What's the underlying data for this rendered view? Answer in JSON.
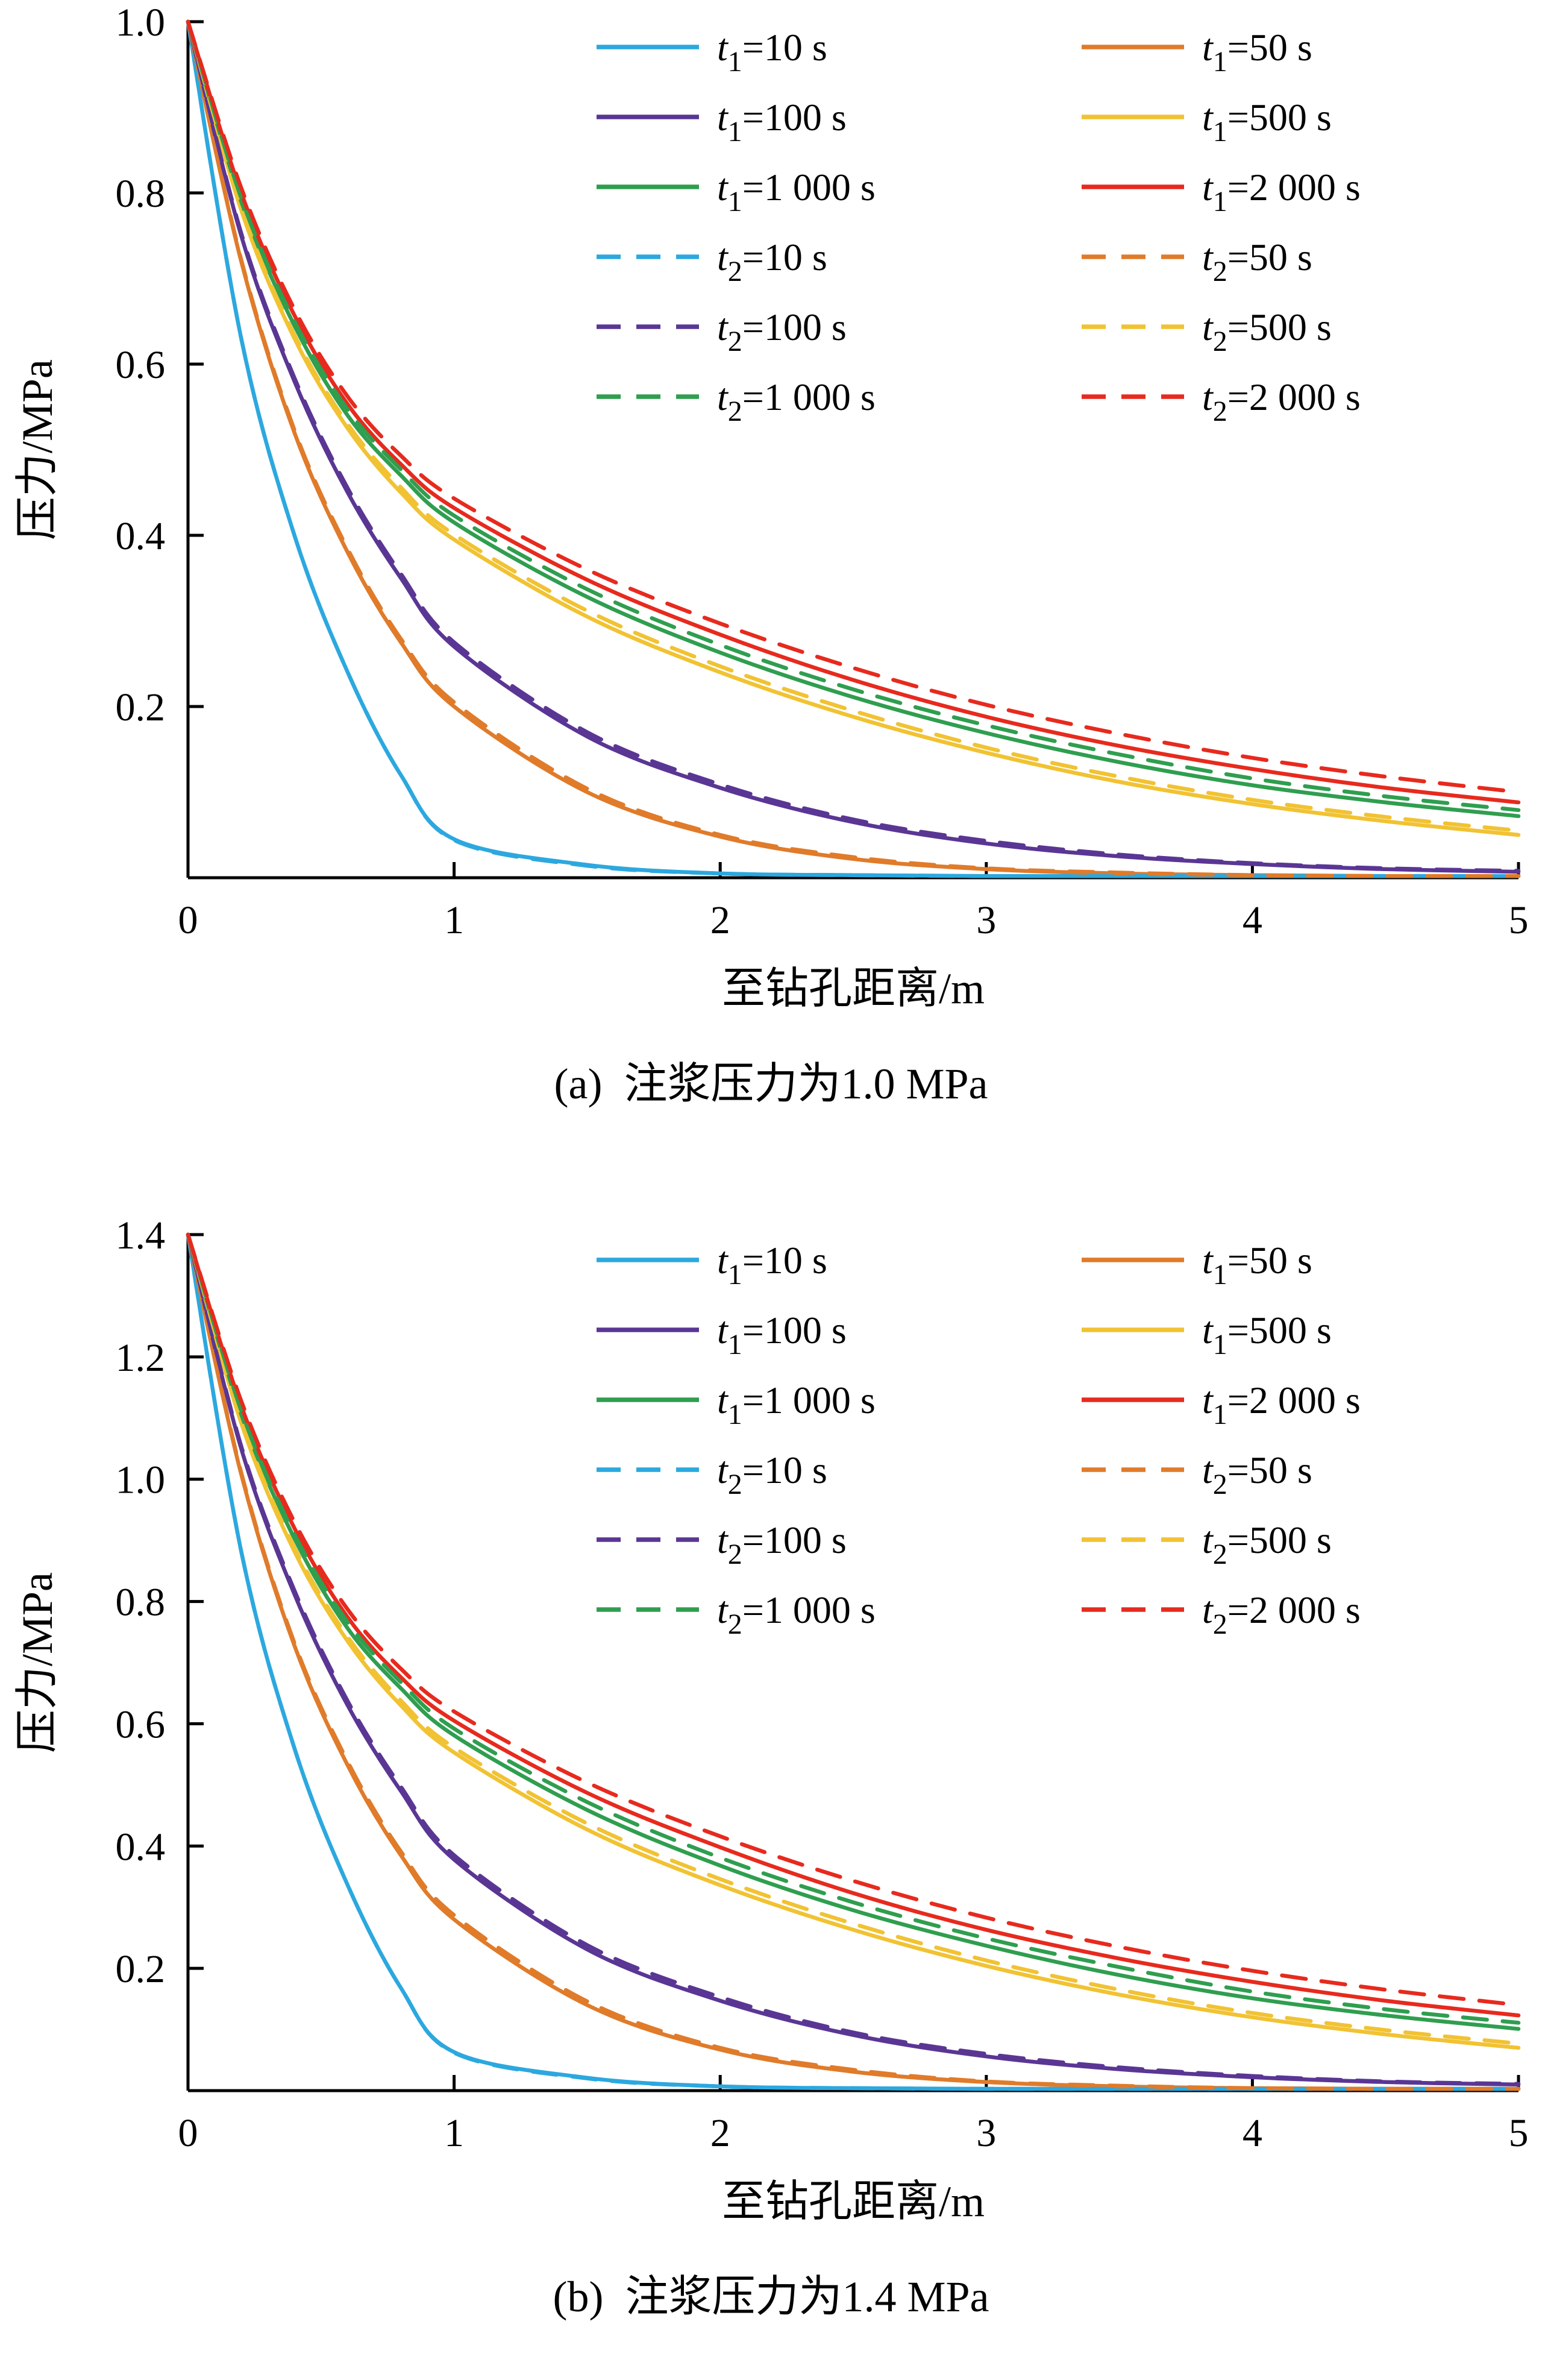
{
  "chart_data": [
    {
      "type": "line",
      "caption": "(a)  注浆压力为1.0 MPa",
      "xlabel": "至钻孔距离/m",
      "ylabel": "压力/MPa",
      "xlim": [
        0,
        5
      ],
      "ylim": [
        0,
        1.0
      ],
      "xticks": [
        0,
        1,
        2,
        3,
        4,
        5
      ],
      "xtick_labels": [
        "0",
        "1",
        "2",
        "3",
        "4",
        "5"
      ],
      "yticks": [
        0.2,
        0.4,
        0.6,
        0.8,
        1.0
      ],
      "ytick_labels": [
        "0.2",
        "0.4",
        "0.6",
        "0.8",
        "1.0"
      ],
      "grid": false,
      "legend_position": "top-center-two-columns",
      "x": [
        0,
        0.2,
        0.4,
        0.6,
        0.8,
        1.0,
        1.5,
        2.0,
        2.5,
        3.0,
        3.5,
        4.0,
        4.5,
        5.0
      ],
      "series": [
        {
          "name": "t1-10s",
          "color": "#2CA8DF",
          "dashed": false,
          "legend": {
            "var": "t",
            "sub": "1",
            "rest": "=10 s"
          },
          "y": [
            1.0,
            0.63,
            0.4,
            0.24,
            0.12,
            0.045,
            0.015,
            0.005,
            0.003,
            0.002,
            0.002,
            0.002,
            0.002,
            0.002
          ]
        },
        {
          "name": "t1-50s",
          "color": "#E07B2A",
          "dashed": false,
          "legend": {
            "var": "t",
            "sub": "1",
            "rest": "=50 s"
          },
          "y": [
            1.0,
            0.72,
            0.52,
            0.38,
            0.275,
            0.2,
            0.1,
            0.048,
            0.022,
            0.01,
            0.005,
            0.003,
            0.002,
            0.002
          ]
        },
        {
          "name": "t1-100s",
          "color": "#5A3694",
          "dashed": false,
          "legend": {
            "var": "t",
            "sub": "1",
            "rest": "=100 s"
          },
          "y": [
            1.0,
            0.75,
            0.58,
            0.45,
            0.35,
            0.27,
            0.165,
            0.105,
            0.065,
            0.04,
            0.025,
            0.016,
            0.01,
            0.007
          ]
        },
        {
          "name": "t1-500s",
          "color": "#F1C232",
          "dashed": false,
          "legend": {
            "var": "t",
            "sub": "1",
            "rest": "=500 s"
          },
          "y": [
            1.0,
            0.78,
            0.63,
            0.525,
            0.45,
            0.395,
            0.305,
            0.24,
            0.188,
            0.146,
            0.112,
            0.086,
            0.066,
            0.05
          ]
        },
        {
          "name": "t1-1000s",
          "color": "#2F9E4F",
          "dashed": false,
          "legend": {
            "var": "t",
            "sub": "1",
            "rest": "=1 000 s"
          },
          "y": [
            1.0,
            0.79,
            0.645,
            0.54,
            0.47,
            0.415,
            0.328,
            0.263,
            0.211,
            0.169,
            0.135,
            0.108,
            0.088,
            0.072
          ]
        },
        {
          "name": "t1-2000s",
          "color": "#E72A1E",
          "dashed": false,
          "legend": {
            "var": "t",
            "sub": "1",
            "rest": "=2 000 s"
          },
          "y": [
            1.0,
            0.8,
            0.657,
            0.553,
            0.483,
            0.432,
            0.348,
            0.284,
            0.231,
            0.188,
            0.154,
            0.127,
            0.105,
            0.088
          ]
        },
        {
          "name": "t2-10s",
          "color": "#2CA8DF",
          "dashed": true,
          "legend": {
            "var": "t",
            "sub": "2",
            "rest": "=10 s"
          },
          "y": [
            1.0,
            0.63,
            0.4,
            0.24,
            0.12,
            0.044,
            0.014,
            0.005,
            0.003,
            0.002,
            0.002,
            0.002,
            0.002,
            0.002
          ]
        },
        {
          "name": "t2-50s",
          "color": "#E07B2A",
          "dashed": true,
          "legend": {
            "var": "t",
            "sub": "2",
            "rest": "=50 s"
          },
          "y": [
            1.0,
            0.722,
            0.523,
            0.384,
            0.279,
            0.205,
            0.104,
            0.05,
            0.024,
            0.011,
            0.006,
            0.003,
            0.002,
            0.002
          ]
        },
        {
          "name": "t2-100s",
          "color": "#5A3694",
          "dashed": true,
          "legend": {
            "var": "t",
            "sub": "2",
            "rest": "=100 s"
          },
          "y": [
            1.0,
            0.753,
            0.584,
            0.455,
            0.355,
            0.275,
            0.17,
            0.109,
            0.068,
            0.043,
            0.027,
            0.017,
            0.011,
            0.008
          ]
        },
        {
          "name": "t2-500s",
          "color": "#F1C232",
          "dashed": true,
          "legend": {
            "var": "t",
            "sub": "2",
            "rest": "=500 s"
          },
          "y": [
            1.0,
            0.783,
            0.634,
            0.53,
            0.456,
            0.401,
            0.312,
            0.247,
            0.195,
            0.152,
            0.118,
            0.091,
            0.071,
            0.055
          ]
        },
        {
          "name": "t2-1000s",
          "color": "#2F9E4F",
          "dashed": true,
          "legend": {
            "var": "t",
            "sub": "2",
            "rest": "=1 000 s"
          },
          "y": [
            1.0,
            0.794,
            0.65,
            0.547,
            0.477,
            0.423,
            0.337,
            0.272,
            0.22,
            0.178,
            0.144,
            0.116,
            0.095,
            0.079
          ]
        },
        {
          "name": "t2-2000s",
          "color": "#E72A1E",
          "dashed": true,
          "legend": {
            "var": "t",
            "sub": "2",
            "rest": "=2 000 s"
          },
          "y": [
            1.0,
            0.806,
            0.664,
            0.562,
            0.493,
            0.443,
            0.36,
            0.297,
            0.245,
            0.202,
            0.168,
            0.14,
            0.118,
            0.1
          ]
        }
      ]
    },
    {
      "type": "line",
      "caption": "(b)  注浆压力为1.4 MPa",
      "xlabel": "至钻孔距离/m",
      "ylabel": "压力/MPa",
      "xlim": [
        0,
        5
      ],
      "ylim": [
        0,
        1.4
      ],
      "xticks": [
        0,
        1,
        2,
        3,
        4,
        5
      ],
      "xtick_labels": [
        "0",
        "1",
        "2",
        "3",
        "4",
        "5"
      ],
      "yticks": [
        0.2,
        0.4,
        0.6,
        0.8,
        1.0,
        1.2,
        1.4
      ],
      "ytick_labels": [
        "0.2",
        "0.4",
        "0.6",
        "0.8",
        "1.0",
        "1.2",
        "1.4"
      ],
      "grid": false,
      "legend_position": "top-center-two-columns",
      "x": [
        0,
        0.2,
        0.4,
        0.6,
        0.8,
        1.0,
        1.5,
        2.0,
        2.5,
        3.0,
        3.5,
        4.0,
        4.5,
        5.0
      ],
      "series": [
        {
          "name": "t1-10s",
          "color": "#2CA8DF",
          "dashed": false,
          "legend": {
            "var": "t",
            "sub": "1",
            "rest": "=10 s"
          },
          "y": [
            1.4,
            0.882,
            0.56,
            0.336,
            0.168,
            0.063,
            0.021,
            0.007,
            0.004,
            0.003,
            0.003,
            0.003,
            0.003,
            0.003
          ]
        },
        {
          "name": "t1-50s",
          "color": "#E07B2A",
          "dashed": false,
          "legend": {
            "var": "t",
            "sub": "1",
            "rest": "=50 s"
          },
          "y": [
            1.4,
            1.008,
            0.728,
            0.532,
            0.385,
            0.28,
            0.14,
            0.067,
            0.031,
            0.014,
            0.007,
            0.004,
            0.003,
            0.003
          ]
        },
        {
          "name": "t1-100s",
          "color": "#5A3694",
          "dashed": false,
          "legend": {
            "var": "t",
            "sub": "1",
            "rest": "=100 s"
          },
          "y": [
            1.4,
            1.05,
            0.812,
            0.63,
            0.49,
            0.378,
            0.231,
            0.147,
            0.091,
            0.056,
            0.035,
            0.022,
            0.014,
            0.01
          ]
        },
        {
          "name": "t1-500s",
          "color": "#F1C232",
          "dashed": false,
          "legend": {
            "var": "t",
            "sub": "1",
            "rest": "=500 s"
          },
          "y": [
            1.4,
            1.092,
            0.882,
            0.735,
            0.63,
            0.553,
            0.427,
            0.336,
            0.263,
            0.204,
            0.157,
            0.12,
            0.092,
            0.07
          ]
        },
        {
          "name": "t1-1000s",
          "color": "#2F9E4F",
          "dashed": false,
          "legend": {
            "var": "t",
            "sub": "1",
            "rest": "=1 000 s"
          },
          "y": [
            1.4,
            1.106,
            0.903,
            0.756,
            0.658,
            0.581,
            0.459,
            0.368,
            0.295,
            0.237,
            0.189,
            0.151,
            0.123,
            0.101
          ]
        },
        {
          "name": "t1-2000s",
          "color": "#E72A1E",
          "dashed": false,
          "legend": {
            "var": "t",
            "sub": "1",
            "rest": "=2 000 s"
          },
          "y": [
            1.4,
            1.12,
            0.92,
            0.774,
            0.676,
            0.605,
            0.487,
            0.398,
            0.323,
            0.263,
            0.216,
            0.178,
            0.147,
            0.123
          ]
        },
        {
          "name": "t2-10s",
          "color": "#2CA8DF",
          "dashed": true,
          "legend": {
            "var": "t",
            "sub": "2",
            "rest": "=10 s"
          },
          "y": [
            1.4,
            0.882,
            0.56,
            0.336,
            0.168,
            0.062,
            0.02,
            0.007,
            0.004,
            0.003,
            0.003,
            0.003,
            0.003,
            0.003
          ]
        },
        {
          "name": "t2-50s",
          "color": "#E07B2A",
          "dashed": true,
          "legend": {
            "var": "t",
            "sub": "2",
            "rest": "=50 s"
          },
          "y": [
            1.4,
            1.011,
            0.732,
            0.538,
            0.391,
            0.287,
            0.146,
            0.07,
            0.034,
            0.015,
            0.008,
            0.004,
            0.003,
            0.003
          ]
        },
        {
          "name": "t2-100s",
          "color": "#5A3694",
          "dashed": true,
          "legend": {
            "var": "t",
            "sub": "2",
            "rest": "=100 s"
          },
          "y": [
            1.4,
            1.054,
            0.818,
            0.637,
            0.497,
            0.385,
            0.238,
            0.153,
            0.095,
            0.06,
            0.038,
            0.024,
            0.015,
            0.011
          ]
        },
        {
          "name": "t2-500s",
          "color": "#F1C232",
          "dashed": true,
          "legend": {
            "var": "t",
            "sub": "2",
            "rest": "=500 s"
          },
          "y": [
            1.4,
            1.096,
            0.888,
            0.742,
            0.638,
            0.561,
            0.437,
            0.346,
            0.273,
            0.213,
            0.165,
            0.127,
            0.099,
            0.077
          ]
        },
        {
          "name": "t2-1000s",
          "color": "#2F9E4F",
          "dashed": true,
          "legend": {
            "var": "t",
            "sub": "2",
            "rest": "=1 000 s"
          },
          "y": [
            1.4,
            1.112,
            0.91,
            0.766,
            0.668,
            0.592,
            0.472,
            0.381,
            0.308,
            0.249,
            0.202,
            0.162,
            0.133,
            0.111
          ]
        },
        {
          "name": "t2-2000s",
          "color": "#E72A1E",
          "dashed": true,
          "legend": {
            "var": "t",
            "sub": "2",
            "rest": "=2 000 s"
          },
          "y": [
            1.4,
            1.128,
            0.93,
            0.787,
            0.69,
            0.62,
            0.504,
            0.416,
            0.343,
            0.283,
            0.235,
            0.196,
            0.165,
            0.14
          ]
        }
      ]
    }
  ]
}
